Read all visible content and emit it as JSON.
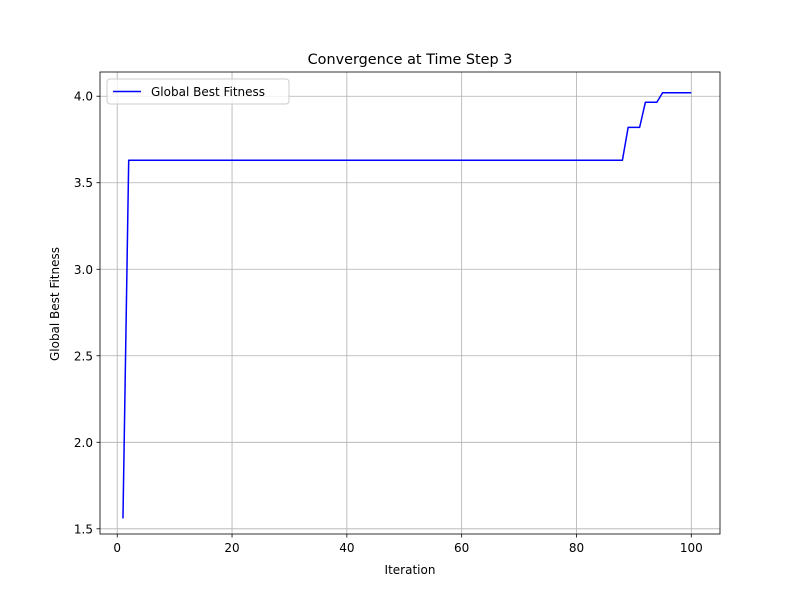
{
  "chart_data": {
    "type": "line",
    "title": "Convergence at Time Step 3",
    "xlabel": "Iteration",
    "ylabel": "Global Best Fitness",
    "xlim": [
      -3,
      105
    ],
    "ylim": [
      1.47,
      4.14
    ],
    "xticks": [
      0,
      20,
      40,
      60,
      80,
      100
    ],
    "yticks": [
      1.5,
      2.0,
      2.5,
      3.0,
      3.5,
      4.0
    ],
    "xtick_labels": [
      "0",
      "20",
      "40",
      "60",
      "80",
      "100"
    ],
    "ytick_labels": [
      "1.5",
      "2.0",
      "2.5",
      "3.0",
      "3.5",
      "4.0"
    ],
    "grid": true,
    "legend_position": "upper-left",
    "series": [
      {
        "name": "Global Best Fitness",
        "color": "#0000ff",
        "x": [
          1,
          2,
          88,
          89,
          91,
          92,
          94,
          95,
          100
        ],
        "y": [
          1.56,
          3.63,
          3.63,
          3.82,
          3.82,
          3.965,
          3.965,
          4.02,
          4.02
        ]
      }
    ]
  }
}
